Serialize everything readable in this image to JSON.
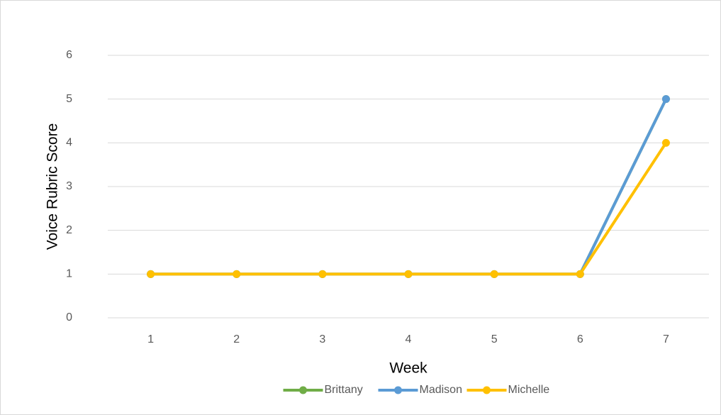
{
  "chart_data": {
    "type": "line",
    "x_label": "Week",
    "y_label": "Voice Rubric Score",
    "categories": [
      "1",
      "2",
      "3",
      "4",
      "5",
      "6",
      "7"
    ],
    "series": [
      {
        "name": "Brittany",
        "color": "#70ad47",
        "values": [
          1,
          1,
          1,
          1,
          1,
          1,
          5
        ]
      },
      {
        "name": "Madison",
        "color": "#5b9bd5",
        "values": [
          1,
          1,
          1,
          1,
          1,
          1,
          5
        ]
      },
      {
        "name": "Michelle",
        "color": "#ffc000",
        "values": [
          1,
          1,
          1,
          1,
          1,
          1,
          4
        ]
      }
    ],
    "ylim": [
      0,
      6
    ],
    "yticks": [
      0,
      1,
      2,
      3,
      4,
      5,
      6
    ],
    "grid": true,
    "legend": "bottom"
  }
}
